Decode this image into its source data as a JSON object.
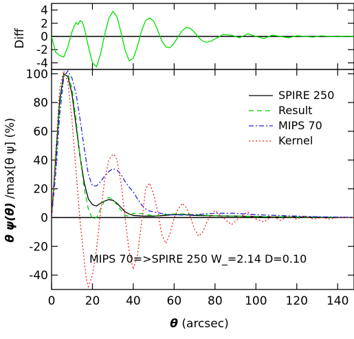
{
  "chart_data": [
    {
      "panel": "top",
      "type": "line",
      "ylabel": "Diff",
      "xlim": [
        0,
        148
      ],
      "ylim": [
        -5,
        5
      ],
      "yticks": [
        -4,
        -2,
        0,
        2,
        4
      ],
      "xticks": [
        0,
        20,
        40,
        60,
        80,
        100,
        120,
        140
      ],
      "show_xtick_labels": false,
      "zero_line": true,
      "series": [
        {
          "color": "#00dd00",
          "style": "solid",
          "x": [
            0,
            2,
            4,
            6,
            8,
            10,
            11,
            12,
            13,
            14,
            15,
            16,
            18,
            20,
            22,
            24,
            26,
            28,
            30,
            32,
            34,
            36,
            38,
            40,
            42,
            44,
            46,
            48,
            50,
            52,
            54,
            56,
            58,
            60,
            62,
            64,
            66,
            68,
            70,
            72,
            74,
            76,
            78,
            80,
            84,
            88,
            92,
            96,
            100,
            104,
            108,
            112,
            116,
            120,
            124,
            128,
            132,
            136,
            140,
            144,
            148
          ],
          "y": [
            0,
            -2.4,
            -2.9,
            -3.1,
            -1.5,
            0.7,
            1.5,
            2.1,
            1.8,
            2.4,
            2.2,
            1.3,
            -1.5,
            -4.0,
            -4.6,
            -2.6,
            0.3,
            2.7,
            3.8,
            3.0,
            0.6,
            -2.1,
            -3.7,
            -3.3,
            -1.5,
            0.8,
            2.4,
            2.8,
            2.3,
            0.9,
            -0.7,
            -1.6,
            -1.7,
            -1.0,
            0,
            0.9,
            1.4,
            1.2,
            0.6,
            -0.2,
            -0.7,
            -0.9,
            -0.7,
            -0.4,
            0.3,
            0.2,
            -0.2,
            0.4,
            0,
            -0.3,
            0.2,
            0,
            -0.2,
            0.1,
            0,
            -0.1,
            0.1,
            0,
            -0.05,
            0.05,
            0
          ]
        }
      ]
    },
    {
      "panel": "bottom",
      "type": "line",
      "ylabel_parts": [
        "θ ψ(θ)",
        " /max[θ ψ] (%)"
      ],
      "xlabel_parts": [
        "θ",
        " (arcsec)"
      ],
      "xlim": [
        0,
        148
      ],
      "ylim": [
        -50,
        103
      ],
      "xticks": [
        0,
        20,
        40,
        60,
        80,
        100,
        120,
        140
      ],
      "yticks": [
        -40,
        -20,
        0,
        20,
        40,
        60,
        80,
        100
      ],
      "zero_line": true,
      "legend_position": "top-right",
      "annotation": "MIPS 70=>SPIRE 250   W_=2.14   D=0.10",
      "series": [
        {
          "name": "SPIRE 250",
          "color": "#000000",
          "style": "solid",
          "x": [
            0,
            2,
            4,
            6,
            8,
            10,
            12,
            14,
            16,
            18,
            20,
            22,
            24,
            26,
            28,
            30,
            32,
            34,
            36,
            38,
            40,
            45,
            50,
            55,
            60,
            65,
            70,
            80,
            90,
            100,
            110,
            120,
            130,
            140,
            148
          ],
          "y": [
            0,
            40,
            82,
            100,
            98,
            86,
            64,
            42,
            24,
            13,
            9,
            8,
            10,
            11.5,
            12.5,
            12,
            10,
            7,
            4,
            2.5,
            1.5,
            1,
            1,
            1.5,
            2,
            2,
            1.5,
            1.2,
            1,
            0.8,
            0.5,
            0.5,
            0.3,
            0.2,
            0.1
          ]
        },
        {
          "name": "Result",
          "color": "#00cc00",
          "style": "dashed",
          "x": [
            0,
            2,
            4,
            6,
            8,
            10,
            12,
            14,
            16,
            18,
            20,
            22,
            24,
            26,
            28,
            30,
            32,
            34,
            36,
            38,
            40,
            45,
            50,
            55,
            60,
            65,
            70,
            80,
            90,
            100,
            110,
            120,
            130,
            140,
            148
          ],
          "y": [
            0,
            36,
            78,
            99,
            100,
            90,
            68,
            42,
            20,
            6,
            -1,
            0,
            6,
            12,
            14,
            12.5,
            9,
            5,
            1.5,
            1,
            3,
            2.8,
            1,
            2,
            2.5,
            2.5,
            2,
            1.3,
            1,
            0.7,
            0.5,
            0.4,
            0.3,
            0.2,
            0.1
          ]
        },
        {
          "name": "MIPS 70",
          "color": "#2020dd",
          "style": "dashdot",
          "x": [
            0,
            2,
            4,
            6,
            8,
            10,
            12,
            14,
            16,
            18,
            20,
            22,
            24,
            26,
            28,
            30,
            32,
            34,
            36,
            38,
            40,
            42,
            44,
            46,
            48,
            50,
            55,
            60,
            65,
            70,
            75,
            80,
            85,
            90,
            95,
            100,
            110,
            120,
            130,
            140,
            148
          ],
          "y": [
            0,
            30,
            72,
            98,
            102,
            97,
            86,
            68,
            48,
            30,
            22,
            22,
            25,
            29,
            32,
            34,
            33,
            30,
            25,
            21,
            18,
            13,
            9,
            6,
            4.5,
            4,
            2.5,
            1.8,
            1.8,
            2,
            2.5,
            3,
            3,
            3,
            2.5,
            2,
            1.5,
            1,
            0.6,
            0.3,
            0.2
          ]
        },
        {
          "name": "Kernel",
          "color": "#ee2020",
          "style": "dotted",
          "x": [
            0,
            2,
            4,
            6,
            8,
            10,
            12,
            14,
            16,
            17,
            18,
            20,
            22,
            24,
            26,
            28,
            30,
            31,
            32,
            34,
            36,
            38,
            40,
            42,
            44,
            45,
            46,
            48,
            50,
            52,
            54,
            56,
            58,
            60,
            62,
            64,
            66,
            68,
            70,
            72,
            74,
            76,
            78,
            80,
            84,
            88,
            92,
            96,
            100,
            104,
            108,
            112,
            116,
            120,
            124,
            128,
            132,
            136,
            140,
            144,
            148
          ],
          "y": [
            0,
            45,
            90,
            102,
            94,
            68,
            32,
            -3,
            -30,
            -42,
            -48,
            -40,
            -22,
            4,
            26,
            40,
            44,
            43,
            40,
            24,
            0,
            -24,
            -36,
            -26,
            -4,
            8,
            20,
            24,
            16,
            4,
            -12,
            -18,
            -11,
            0,
            6,
            10,
            7,
            0,
            -8,
            -13,
            -10,
            -3,
            2,
            5,
            0,
            -5,
            0,
            4,
            -1,
            -3,
            1,
            -2,
            1,
            -1,
            1,
            -1,
            0,
            -1,
            0,
            0,
            0
          ]
        }
      ]
    }
  ]
}
